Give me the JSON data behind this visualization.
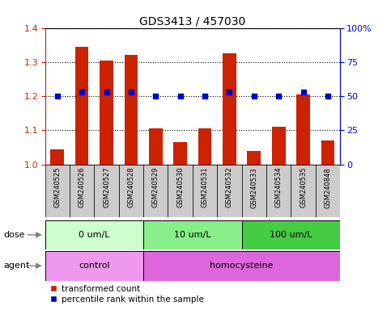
{
  "title": "GDS3413 / 457030",
  "samples": [
    "GSM240525",
    "GSM240526",
    "GSM240527",
    "GSM240528",
    "GSM240529",
    "GSM240530",
    "GSM240531",
    "GSM240532",
    "GSM240533",
    "GSM240534",
    "GSM240535",
    "GSM240848"
  ],
  "red_values": [
    1.045,
    1.345,
    1.305,
    1.32,
    1.105,
    1.065,
    1.105,
    1.325,
    1.04,
    1.11,
    1.205,
    1.07
  ],
  "blue_percentiles": [
    50,
    53,
    53,
    53,
    50,
    50,
    50,
    53,
    50,
    50,
    53,
    50
  ],
  "ylim_left": [
    1.0,
    1.4
  ],
  "ylim_right": [
    0,
    100
  ],
  "yticks_left": [
    1.0,
    1.1,
    1.2,
    1.3,
    1.4
  ],
  "yticks_right": [
    0,
    25,
    50,
    75,
    100
  ],
  "ytick_labels_right": [
    "0",
    "25",
    "50",
    "75",
    "100%"
  ],
  "dose_groups": [
    {
      "label": "0 um/L",
      "start": 0,
      "end": 4,
      "color": "#CCFFCC"
    },
    {
      "label": "10 um/L",
      "start": 4,
      "end": 8,
      "color": "#88EE88"
    },
    {
      "label": "100 um/L",
      "start": 8,
      "end": 12,
      "color": "#44CC44"
    }
  ],
  "agent_groups": [
    {
      "label": "control",
      "start": 0,
      "end": 4,
      "color": "#EE99EE"
    },
    {
      "label": "homocysteine",
      "start": 4,
      "end": 12,
      "color": "#DD66DD"
    }
  ],
  "bar_color": "#CC2200",
  "dot_color": "#0000CC",
  "axis_color_left": "#CC2200",
  "axis_color_right": "#0000CC",
  "sample_box_color": "#CCCCCC",
  "legend_items": [
    {
      "label": "transformed count",
      "color": "#CC2200"
    },
    {
      "label": "percentile rank within the sample",
      "color": "#0000CC"
    }
  ],
  "dose_label": "dose",
  "agent_label": "agent"
}
